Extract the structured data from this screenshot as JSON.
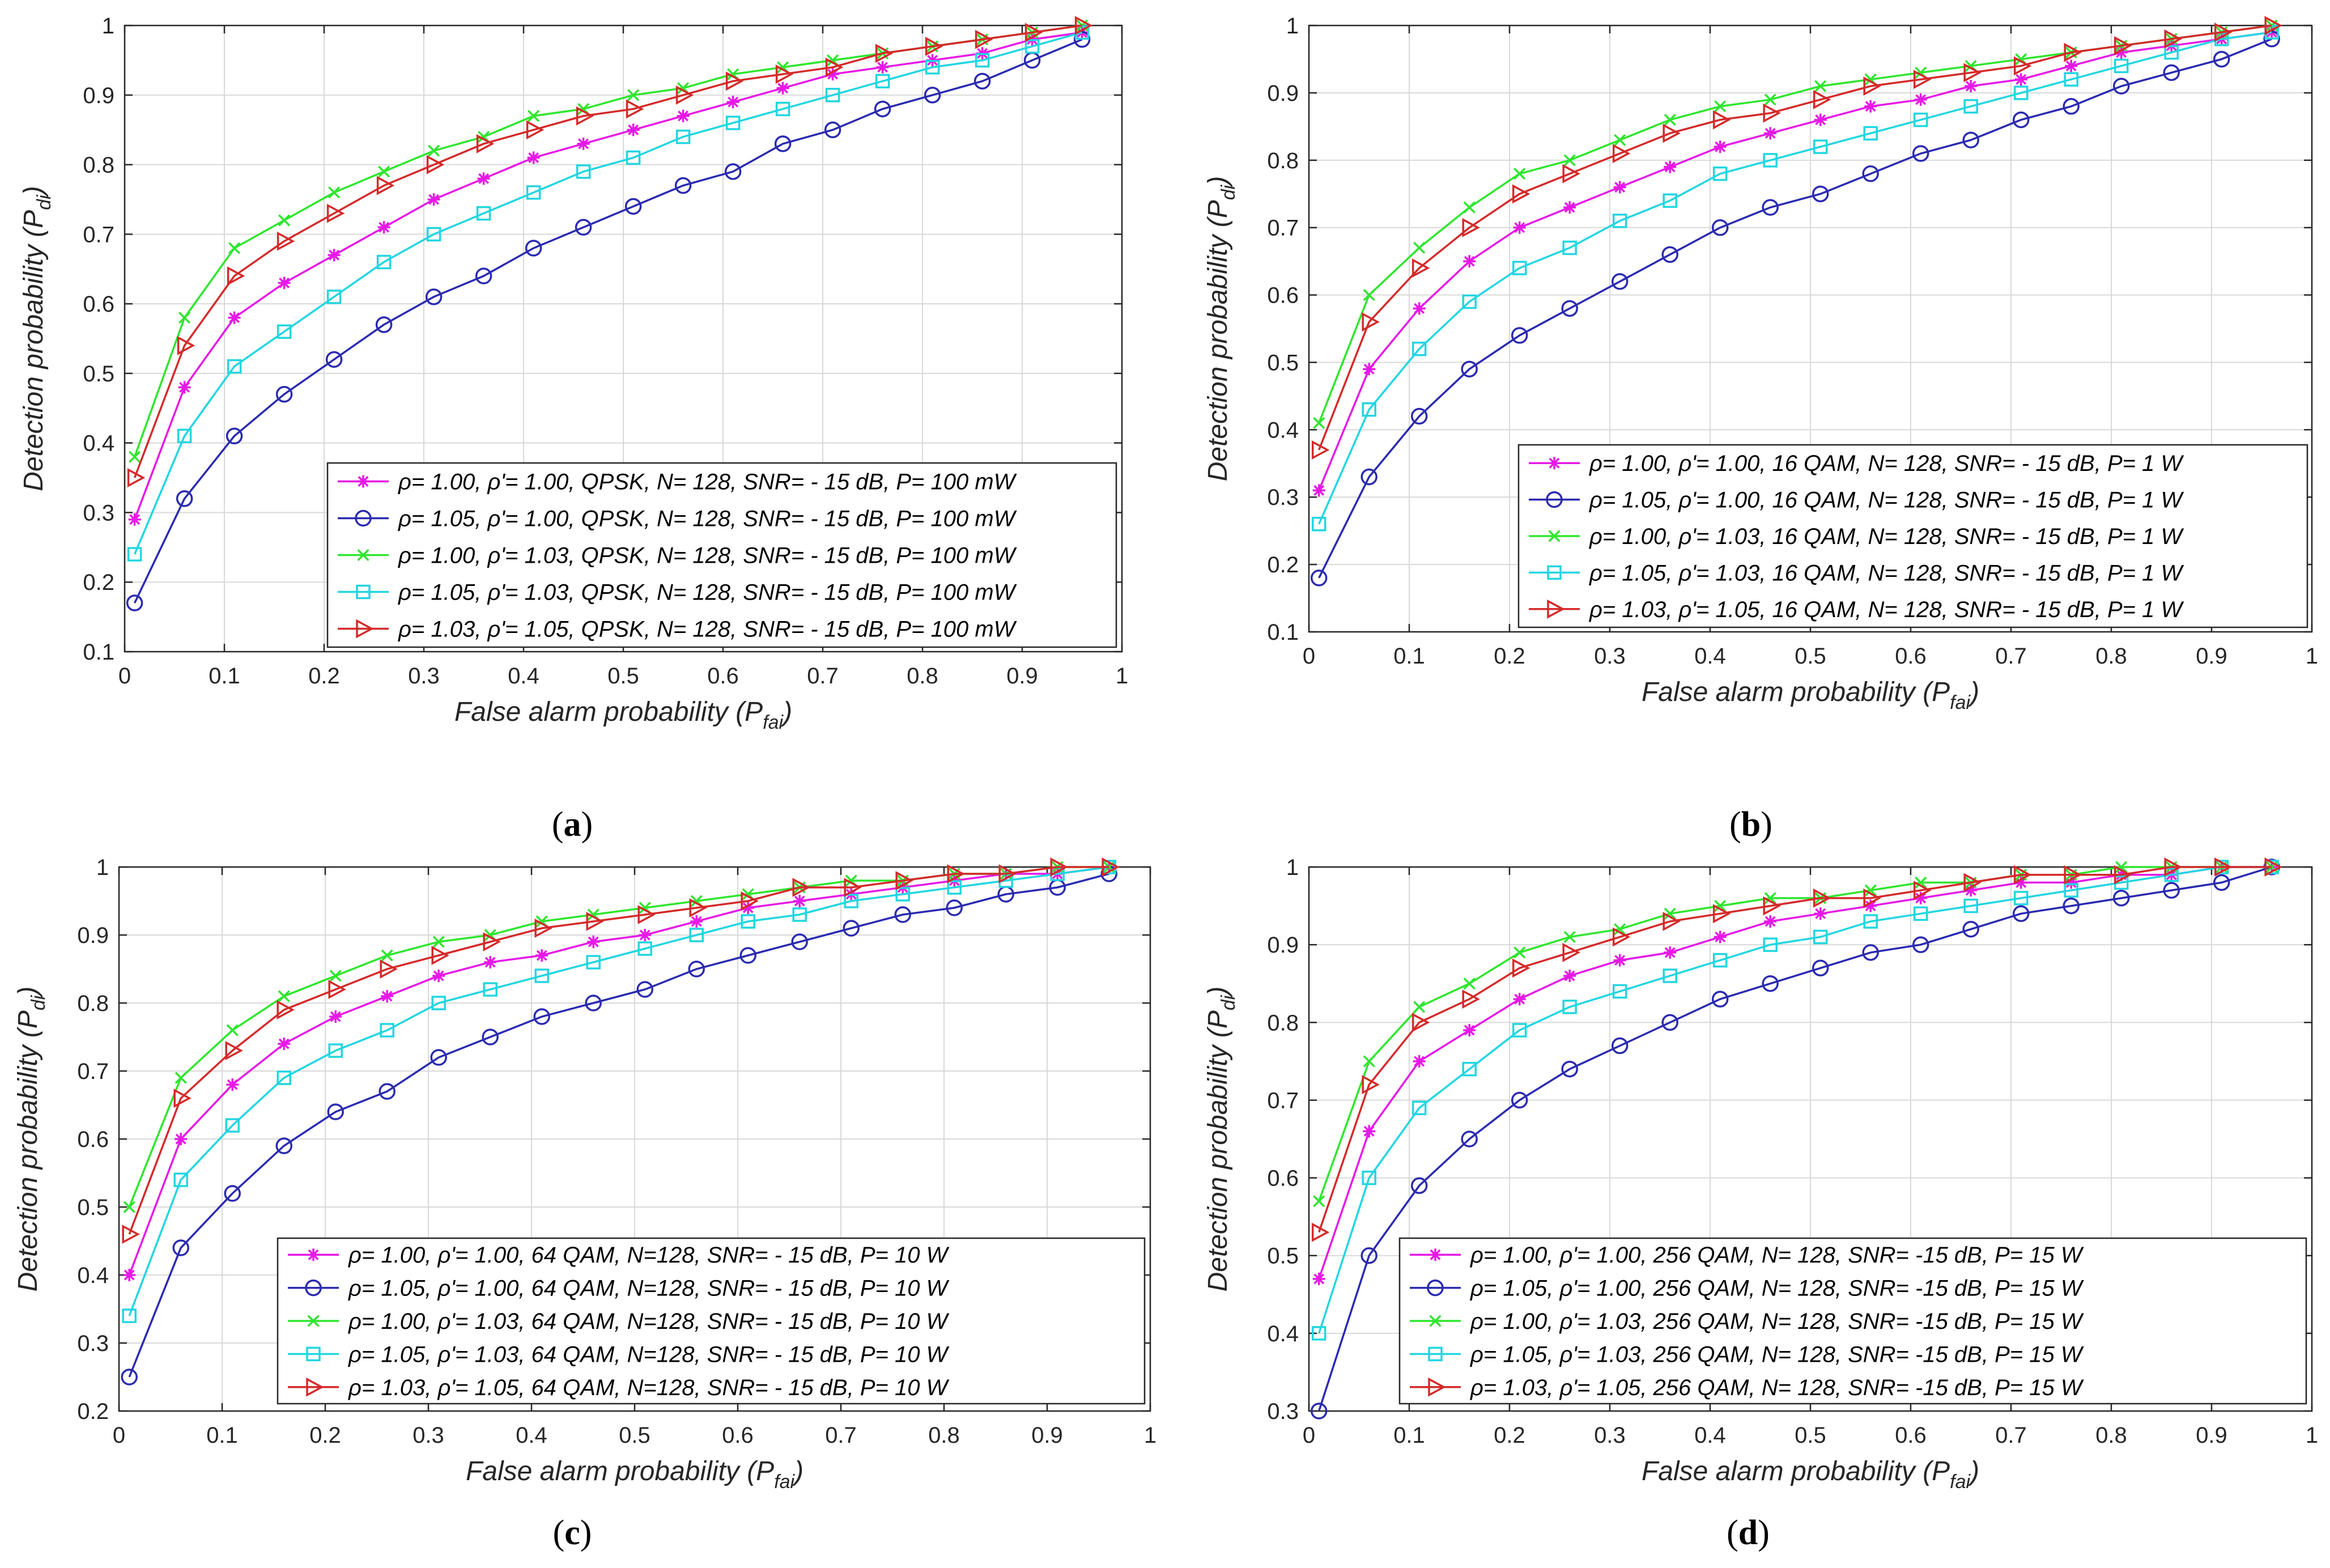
{
  "figure": {
    "captions": [
      "(a)",
      "(b)",
      "(c)",
      "(d)"
    ]
  },
  "colors": {
    "series": [
      "#e619e6",
      "#2a2ab0",
      "#2ee62e",
      "#22d6e0",
      "#d42a2a"
    ],
    "grid": "#d9d9d9",
    "axis": "#262626"
  },
  "chart_data": [
    {
      "type": "line",
      "caption": "(a)",
      "xlabel": "False alarm probability",
      "xlabel_var": "P",
      "xlabel_sub": "fai",
      "ylabel": "Detection probability",
      "ylabel_var": "P",
      "ylabel_sub": "di",
      "xlim": [
        0,
        1
      ],
      "ylim": [
        0.1,
        1
      ],
      "xticks": [
        0,
        0.1,
        0.2,
        0.3,
        0.4,
        0.5,
        0.6,
        0.7,
        0.8,
        0.9,
        1
      ],
      "yticks": [
        0.1,
        0.2,
        0.3,
        0.4,
        0.5,
        0.6,
        0.7,
        0.8,
        0.9,
        1
      ],
      "xtick_labels": [
        "0",
        "0.1",
        "0.2",
        "0.3",
        "0.4",
        "0.5",
        "0.6",
        "0.7",
        "0.8",
        "0.9",
        "1"
      ],
      "ytick_labels": [
        "0.1",
        "0.2",
        "0.3",
        "0.4",
        "0.5",
        "0.6",
        "0.7",
        "0.8",
        "0.9",
        "1"
      ],
      "grid": true,
      "legend_position": "bottom-right",
      "x": [
        0.01,
        0.06,
        0.11,
        0.16,
        0.21,
        0.26,
        0.31,
        0.36,
        0.41,
        0.46,
        0.51,
        0.56,
        0.61,
        0.66,
        0.71,
        0.76,
        0.81,
        0.86,
        0.91,
        0.96
      ],
      "series": [
        {
          "name": "ρ= 1.00, ρ'= 1.00, QPSK, N= 128, SNR= - 15 dB, P= 100 mW",
          "marker": "star",
          "color_index": 0,
          "values": [
            0.29,
            0.48,
            0.58,
            0.63,
            0.67,
            0.71,
            0.75,
            0.78,
            0.81,
            0.83,
            0.85,
            0.87,
            0.89,
            0.91,
            0.93,
            0.94,
            0.95,
            0.96,
            0.98,
            0.99
          ]
        },
        {
          "name": "ρ= 1.05, ρ'= 1.00, QPSK, N= 128, SNR= - 15 dB, P= 100 mW",
          "marker": "circle",
          "color_index": 1,
          "values": [
            0.17,
            0.32,
            0.41,
            0.47,
            0.52,
            0.57,
            0.61,
            0.64,
            0.68,
            0.71,
            0.74,
            0.77,
            0.79,
            0.83,
            0.85,
            0.88,
            0.9,
            0.92,
            0.95,
            0.98
          ]
        },
        {
          "name": "ρ= 1.00, ρ'= 1.03, QPSK, N= 128, SNR= - 15 dB, P= 100 mW",
          "marker": "x",
          "color_index": 2,
          "values": [
            0.38,
            0.58,
            0.68,
            0.72,
            0.76,
            0.79,
            0.82,
            0.84,
            0.87,
            0.88,
            0.9,
            0.91,
            0.93,
            0.94,
            0.95,
            0.96,
            0.97,
            0.98,
            0.99,
            1.0
          ]
        },
        {
          "name": "ρ= 1.05, ρ'= 1.03, QPSK, N= 128, SNR= - 15 dB, P= 100 mW",
          "marker": "square",
          "color_index": 3,
          "values": [
            0.24,
            0.41,
            0.51,
            0.56,
            0.61,
            0.66,
            0.7,
            0.73,
            0.76,
            0.79,
            0.81,
            0.84,
            0.86,
            0.88,
            0.9,
            0.92,
            0.94,
            0.95,
            0.97,
            0.99
          ]
        },
        {
          "name": "ρ= 1.03, ρ'= 1.05, QPSK, N= 128, SNR= - 15 dB, P= 100 mW",
          "marker": "triangle",
          "color_index": 4,
          "values": [
            0.35,
            0.54,
            0.64,
            0.69,
            0.73,
            0.77,
            0.8,
            0.83,
            0.85,
            0.87,
            0.88,
            0.9,
            0.92,
            0.93,
            0.94,
            0.96,
            0.97,
            0.98,
            0.99,
            1.0
          ]
        }
      ]
    },
    {
      "type": "line",
      "caption": "(b)",
      "xlabel": "False alarm probability",
      "xlabel_var": "P",
      "xlabel_sub": "fai",
      "ylabel": "Detection probability",
      "ylabel_var": "P",
      "ylabel_sub": "di",
      "xlim": [
        0,
        1
      ],
      "ylim": [
        0.1,
        1
      ],
      "xticks": [
        0,
        0.1,
        0.2,
        0.3,
        0.4,
        0.5,
        0.6,
        0.7,
        0.8,
        0.9,
        1
      ],
      "yticks": [
        0.1,
        0.2,
        0.3,
        0.4,
        0.5,
        0.6,
        0.7,
        0.8,
        0.9,
        1
      ],
      "xtick_labels": [
        "0",
        "0.1",
        "0.2",
        "0.3",
        "0.4",
        "0.5",
        "0.6",
        "0.7",
        "0.8",
        "0.9",
        "1"
      ],
      "ytick_labels": [
        "0.1",
        "0.2",
        "0.3",
        "0.4",
        "0.5",
        "0.6",
        "0.7",
        "0.8",
        "0.9",
        "1"
      ],
      "grid": true,
      "legend_position": "bottom-right",
      "x": [
        0.01,
        0.06,
        0.11,
        0.16,
        0.21,
        0.26,
        0.31,
        0.36,
        0.41,
        0.46,
        0.51,
        0.56,
        0.61,
        0.66,
        0.71,
        0.76,
        0.81,
        0.86,
        0.91,
        0.96
      ],
      "series": [
        {
          "name": "ρ= 1.00, ρ'= 1.00, 16 QAM, N= 128, SNR= - 15 dB, P= 1 W",
          "marker": "star",
          "color_index": 0,
          "values": [
            0.31,
            0.49,
            0.58,
            0.65,
            0.7,
            0.73,
            0.76,
            0.79,
            0.82,
            0.84,
            0.86,
            0.88,
            0.89,
            0.91,
            0.92,
            0.94,
            0.96,
            0.97,
            0.98,
            0.99
          ]
        },
        {
          "name": "ρ= 1.05, ρ'= 1.00, 16 QAM, N= 128, SNR= - 15 dB, P= 1 W",
          "marker": "circle",
          "color_index": 1,
          "values": [
            0.18,
            0.33,
            0.42,
            0.49,
            0.54,
            0.58,
            0.62,
            0.66,
            0.7,
            0.73,
            0.75,
            0.78,
            0.81,
            0.83,
            0.86,
            0.88,
            0.91,
            0.93,
            0.95,
            0.98
          ]
        },
        {
          "name": "ρ= 1.00, ρ'= 1.03, 16 QAM, N= 128, SNR= - 15 dB, P= 1 W",
          "marker": "x",
          "color_index": 2,
          "values": [
            0.41,
            0.6,
            0.67,
            0.73,
            0.78,
            0.8,
            0.83,
            0.86,
            0.88,
            0.89,
            0.91,
            0.92,
            0.93,
            0.94,
            0.95,
            0.96,
            0.97,
            0.98,
            0.99,
            1.0
          ]
        },
        {
          "name": "ρ= 1.05, ρ'= 1.03, 16 QAM, N= 128, SNR= - 15 dB, P= 1 W",
          "marker": "square",
          "color_index": 3,
          "values": [
            0.26,
            0.43,
            0.52,
            0.59,
            0.64,
            0.67,
            0.71,
            0.74,
            0.78,
            0.8,
            0.82,
            0.84,
            0.86,
            0.88,
            0.9,
            0.92,
            0.94,
            0.96,
            0.98,
            0.99
          ]
        },
        {
          "name": "ρ= 1.03, ρ'= 1.05, 16 QAM, N= 128, SNR= - 15 dB, P= 1 W",
          "marker": "triangle",
          "color_index": 4,
          "values": [
            0.37,
            0.56,
            0.64,
            0.7,
            0.75,
            0.78,
            0.81,
            0.84,
            0.86,
            0.87,
            0.89,
            0.91,
            0.92,
            0.93,
            0.94,
            0.96,
            0.97,
            0.98,
            0.99,
            1.0
          ]
        }
      ]
    },
    {
      "type": "line",
      "caption": "(c)",
      "xlabel": "False alarm probability",
      "xlabel_var": "P",
      "xlabel_sub": "fai",
      "ylabel": "Detection probability",
      "ylabel_var": "P",
      "ylabel_sub": "di",
      "xlim": [
        0,
        1
      ],
      "ylim": [
        0.2,
        1
      ],
      "xticks": [
        0,
        0.1,
        0.2,
        0.3,
        0.4,
        0.5,
        0.6,
        0.7,
        0.8,
        0.9,
        1
      ],
      "yticks": [
        0.2,
        0.3,
        0.4,
        0.5,
        0.6,
        0.7,
        0.8,
        0.9,
        1
      ],
      "xtick_labels": [
        "0",
        "0.1",
        "0.2",
        "0.3",
        "0.4",
        "0.5",
        "0.6",
        "0.7",
        "0.8",
        "0.9",
        "1"
      ],
      "ytick_labels": [
        "0.2",
        "0.3",
        "0.4",
        "0.5",
        "0.6",
        "0.7",
        "0.8",
        "0.9",
        "1"
      ],
      "grid": true,
      "legend_position": "bottom-right",
      "x": [
        0.01,
        0.06,
        0.11,
        0.16,
        0.21,
        0.26,
        0.31,
        0.36,
        0.41,
        0.46,
        0.51,
        0.56,
        0.61,
        0.66,
        0.71,
        0.76,
        0.81,
        0.86,
        0.91,
        0.96
      ],
      "series": [
        {
          "name": "ρ= 1.00, ρ'= 1.00, 64 QAM, N=128, SNR= - 15 dB, P= 10 W",
          "marker": "star",
          "color_index": 0,
          "values": [
            0.4,
            0.6,
            0.68,
            0.74,
            0.78,
            0.81,
            0.84,
            0.86,
            0.87,
            0.89,
            0.9,
            0.92,
            0.94,
            0.95,
            0.96,
            0.97,
            0.98,
            0.99,
            0.99,
            1.0
          ]
        },
        {
          "name": "ρ= 1.05, ρ'= 1.00, 64 QAM, N=128, SNR= - 15 dB, P= 10 W",
          "marker": "circle",
          "color_index": 1,
          "values": [
            0.25,
            0.44,
            0.52,
            0.59,
            0.64,
            0.67,
            0.72,
            0.75,
            0.78,
            0.8,
            0.82,
            0.85,
            0.87,
            0.89,
            0.91,
            0.93,
            0.94,
            0.96,
            0.97,
            0.99
          ]
        },
        {
          "name": "ρ= 1.00, ρ'= 1.03, 64 QAM, N=128, SNR= - 15 dB, P= 10 W",
          "marker": "x",
          "color_index": 2,
          "values": [
            0.5,
            0.69,
            0.76,
            0.81,
            0.84,
            0.87,
            0.89,
            0.9,
            0.92,
            0.93,
            0.94,
            0.95,
            0.96,
            0.97,
            0.98,
            0.98,
            0.99,
            0.99,
            1.0,
            1.0
          ]
        },
        {
          "name": "ρ= 1.05, ρ'= 1.03, 64 QAM, N=128, SNR= - 15 dB, P= 10 W",
          "marker": "square",
          "color_index": 3,
          "values": [
            0.34,
            0.54,
            0.62,
            0.69,
            0.73,
            0.76,
            0.8,
            0.82,
            0.84,
            0.86,
            0.88,
            0.9,
            0.92,
            0.93,
            0.95,
            0.96,
            0.97,
            0.98,
            0.99,
            1.0
          ]
        },
        {
          "name": "ρ= 1.03, ρ'= 1.05, 64 QAM, N=128, SNR= - 15 dB, P= 10 W",
          "marker": "triangle",
          "color_index": 4,
          "values": [
            0.46,
            0.66,
            0.73,
            0.79,
            0.82,
            0.85,
            0.87,
            0.89,
            0.91,
            0.92,
            0.93,
            0.94,
            0.95,
            0.97,
            0.97,
            0.98,
            0.99,
            0.99,
            1.0,
            1.0
          ]
        }
      ]
    },
    {
      "type": "line",
      "caption": "(d)",
      "xlabel": "False alarm probability",
      "xlabel_var": "P",
      "xlabel_sub": "fai",
      "ylabel": "Detection probability",
      "ylabel_var": "P",
      "ylabel_sub": "di",
      "xlim": [
        0,
        1
      ],
      "ylim": [
        0.3,
        1
      ],
      "xticks": [
        0,
        0.1,
        0.2,
        0.3,
        0.4,
        0.5,
        0.6,
        0.7,
        0.8,
        0.9,
        1
      ],
      "yticks": [
        0.3,
        0.4,
        0.5,
        0.6,
        0.7,
        0.8,
        0.9,
        1
      ],
      "xtick_labels": [
        "0",
        "0.1",
        "0.2",
        "0.3",
        "0.4",
        "0.5",
        "0.6",
        "0.7",
        "0.8",
        "0.9",
        "1"
      ],
      "ytick_labels": [
        "0.3",
        "0.4",
        "0.5",
        "0.6",
        "0.7",
        "0.8",
        "0.9",
        "1"
      ],
      "grid": true,
      "legend_position": "bottom-right",
      "x": [
        0.01,
        0.06,
        0.11,
        0.16,
        0.21,
        0.26,
        0.31,
        0.36,
        0.41,
        0.46,
        0.51,
        0.56,
        0.61,
        0.66,
        0.71,
        0.76,
        0.81,
        0.86,
        0.91,
        0.96
      ],
      "series": [
        {
          "name": "ρ= 1.00, ρ'= 1.00, 256 QAM, N= 128, SNR= -15 dB, P= 15 W",
          "marker": "star",
          "color_index": 0,
          "values": [
            0.47,
            0.66,
            0.75,
            0.79,
            0.83,
            0.86,
            0.88,
            0.89,
            0.91,
            0.93,
            0.94,
            0.95,
            0.96,
            0.97,
            0.98,
            0.98,
            0.99,
            0.99,
            1.0,
            1.0
          ]
        },
        {
          "name": "ρ= 1.05, ρ'= 1.00, 256 QAM, N= 128, SNR= -15 dB, P= 15 W",
          "marker": "circle",
          "color_index": 1,
          "values": [
            0.3,
            0.5,
            0.59,
            0.65,
            0.7,
            0.74,
            0.77,
            0.8,
            0.83,
            0.85,
            0.87,
            0.89,
            0.9,
            0.92,
            0.94,
            0.95,
            0.96,
            0.97,
            0.98,
            1.0
          ]
        },
        {
          "name": "ρ= 1.00, ρ'= 1.03, 256 QAM, N= 128, SNR= -15 dB, P= 15 W",
          "marker": "x",
          "color_index": 2,
          "values": [
            0.57,
            0.75,
            0.82,
            0.85,
            0.89,
            0.91,
            0.92,
            0.94,
            0.95,
            0.96,
            0.96,
            0.97,
            0.98,
            0.98,
            0.99,
            0.99,
            1.0,
            1.0,
            1.0,
            1.0
          ]
        },
        {
          "name": "ρ= 1.05, ρ'= 1.03, 256 QAM, N= 128, SNR= -15 dB, P= 15 W",
          "marker": "square",
          "color_index": 3,
          "values": [
            0.4,
            0.6,
            0.69,
            0.74,
            0.79,
            0.82,
            0.84,
            0.86,
            0.88,
            0.9,
            0.91,
            0.93,
            0.94,
            0.95,
            0.96,
            0.97,
            0.98,
            0.99,
            1.0,
            1.0
          ]
        },
        {
          "name": "ρ= 1.03, ρ'= 1.05, 256 QAM, N= 128, SNR= -15 dB, P= 15 W",
          "marker": "triangle",
          "color_index": 4,
          "values": [
            0.53,
            0.72,
            0.8,
            0.83,
            0.87,
            0.89,
            0.91,
            0.93,
            0.94,
            0.95,
            0.96,
            0.96,
            0.97,
            0.98,
            0.99,
            0.99,
            0.99,
            1.0,
            1.0,
            1.0
          ]
        }
      ]
    }
  ]
}
